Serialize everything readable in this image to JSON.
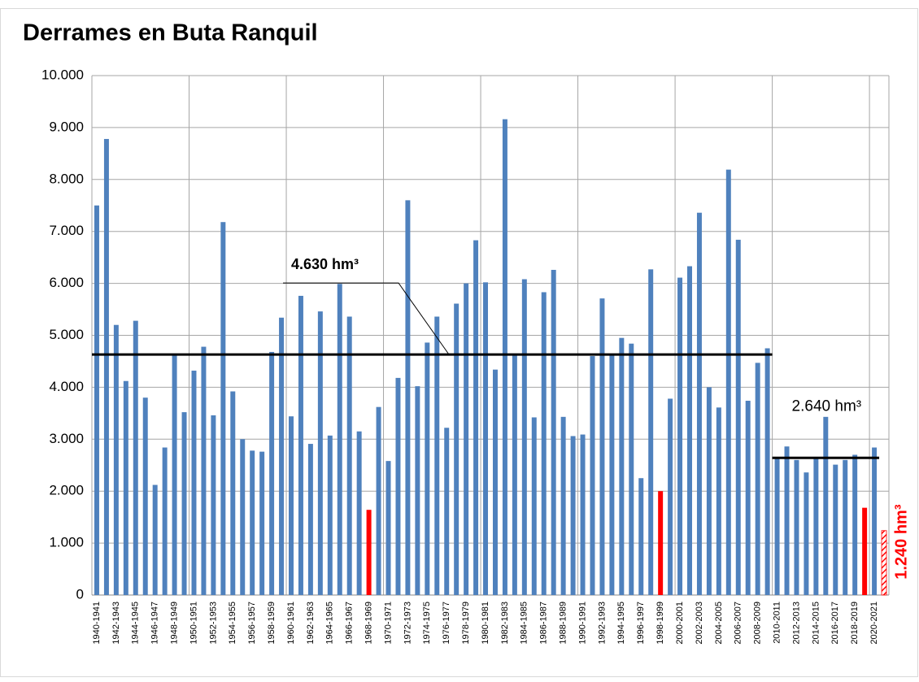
{
  "chart_data": {
    "type": "bar",
    "title": "Derrames en Buta Ranquil",
    "categories": [
      "1940-1941",
      null,
      "1942-1943",
      null,
      "1944-1945",
      null,
      "1946-1947",
      null,
      "1948-1949",
      null,
      "1950-1951",
      null,
      "1952-1953",
      null,
      "1954-1955",
      null,
      "1956-1957",
      null,
      "1958-1959",
      null,
      "1960-1961",
      null,
      "1962-1963",
      null,
      "1964-1965",
      null,
      "1966-1967",
      null,
      "1968-1969",
      null,
      "1970-1971",
      null,
      "1972-1973",
      null,
      "1974-1975",
      null,
      "1976-1977",
      null,
      "1978-1979",
      null,
      "1980-1981",
      null,
      "1982-1983",
      null,
      "1984-1985",
      null,
      "1986-1987",
      null,
      "1988-1989",
      null,
      "1990-1991",
      null,
      "1992-1993",
      null,
      "1994-1995",
      null,
      "1996-1997",
      null,
      "1998-1999",
      null,
      "2000-2001",
      null,
      "2002-2003",
      null,
      "2004-2005",
      null,
      "2006-2007",
      null,
      "2008-2009",
      null,
      "2010-2011",
      null,
      "2012-2013",
      null,
      "2014-2015",
      null,
      "2016-2017",
      null,
      "2018-2019",
      null,
      "2020-2021",
      null
    ],
    "values": [
      7500,
      8780,
      5200,
      4120,
      5280,
      3800,
      2120,
      2840,
      4620,
      3520,
      4320,
      4780,
      3460,
      7180,
      3920,
      3000,
      2780,
      2760,
      4680,
      5340,
      3440,
      5760,
      2910,
      5460,
      3070,
      5990,
      5360,
      3150,
      1640,
      3620,
      2580,
      4180,
      7600,
      4020,
      4860,
      5360,
      3220,
      5610,
      6000,
      6830,
      6020,
      4340,
      9160,
      4620,
      6080,
      3420,
      5830,
      6260,
      3430,
      3060,
      3090,
      4600,
      5710,
      4640,
      4950,
      4840,
      2250,
      6270,
      2000,
      3780,
      6110,
      6330,
      7360,
      4000,
      3610,
      8190,
      6840,
      3740,
      4470,
      4750,
      2660,
      2860,
      2600,
      2360,
      2640,
      3430,
      2510,
      2600,
      2700,
      1680,
      2840,
      1240
    ],
    "color": "#4f81bd",
    "highlight_color": "#ff0000",
    "highlighted": [
      28,
      58,
      79
    ],
    "hatched": [
      81
    ],
    "ylim": [
      0,
      10000
    ],
    "yticks": [
      0,
      {
        "value": 1000,
        "label": "1.000"
      },
      {
        "value": 2000,
        "label": "2.000"
      },
      {
        "value": 3000,
        "label": "3.000"
      },
      {
        "value": 4000,
        "label": "4.000"
      },
      {
        "value": 5000,
        "label": "5.000"
      },
      {
        "value": 6000,
        "label": "6.000"
      },
      {
        "value": 7000,
        "label": "7.000"
      },
      {
        "value": 8000,
        "label": "8.000"
      },
      {
        "value": 9000,
        "label": "9.000"
      },
      {
        "value": 10000,
        "label": "10.000"
      }
    ],
    "grid": true,
    "xgrid_every": 10,
    "mean_lines": [
      {
        "label": "4.630 hm³",
        "value": 4630,
        "from": 0,
        "to": 69
      },
      {
        "label": "2.640 hm³",
        "value": 2640,
        "from": 70,
        "to": 80
      }
    ],
    "annotations": [
      {
        "text": "1.240 hm³",
        "value": 1240,
        "category": 81
      }
    ]
  }
}
